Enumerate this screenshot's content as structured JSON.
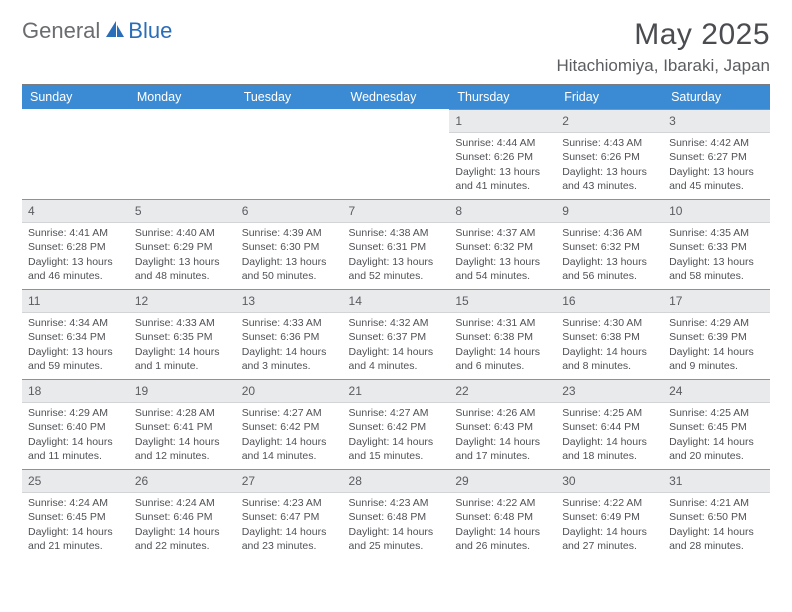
{
  "logo": {
    "text1": "General",
    "text2": "Blue"
  },
  "title": "May 2025",
  "location": "Hitachiomiya, Ibaraki, Japan",
  "colors": {
    "header_bg": "#3b8bd4",
    "header_text": "#ffffff",
    "daynum_bg": "#e9eaec",
    "text": "#4f5155",
    "logo_gray": "#6a6c70",
    "logo_blue": "#2a6db8"
  },
  "weekdays": [
    "Sunday",
    "Monday",
    "Tuesday",
    "Wednesday",
    "Thursday",
    "Friday",
    "Saturday"
  ],
  "weeks": [
    [
      {
        "day": "",
        "lines": [
          "",
          "",
          "",
          ""
        ]
      },
      {
        "day": "",
        "lines": [
          "",
          "",
          "",
          ""
        ]
      },
      {
        "day": "",
        "lines": [
          "",
          "",
          "",
          ""
        ]
      },
      {
        "day": "",
        "lines": [
          "",
          "",
          "",
          ""
        ]
      },
      {
        "day": "1",
        "lines": [
          "Sunrise: 4:44 AM",
          "Sunset: 6:26 PM",
          "Daylight: 13 hours",
          "and 41 minutes."
        ]
      },
      {
        "day": "2",
        "lines": [
          "Sunrise: 4:43 AM",
          "Sunset: 6:26 PM",
          "Daylight: 13 hours",
          "and 43 minutes."
        ]
      },
      {
        "day": "3",
        "lines": [
          "Sunrise: 4:42 AM",
          "Sunset: 6:27 PM",
          "Daylight: 13 hours",
          "and 45 minutes."
        ]
      }
    ],
    [
      {
        "day": "4",
        "lines": [
          "Sunrise: 4:41 AM",
          "Sunset: 6:28 PM",
          "Daylight: 13 hours",
          "and 46 minutes."
        ]
      },
      {
        "day": "5",
        "lines": [
          "Sunrise: 4:40 AM",
          "Sunset: 6:29 PM",
          "Daylight: 13 hours",
          "and 48 minutes."
        ]
      },
      {
        "day": "6",
        "lines": [
          "Sunrise: 4:39 AM",
          "Sunset: 6:30 PM",
          "Daylight: 13 hours",
          "and 50 minutes."
        ]
      },
      {
        "day": "7",
        "lines": [
          "Sunrise: 4:38 AM",
          "Sunset: 6:31 PM",
          "Daylight: 13 hours",
          "and 52 minutes."
        ]
      },
      {
        "day": "8",
        "lines": [
          "Sunrise: 4:37 AM",
          "Sunset: 6:32 PM",
          "Daylight: 13 hours",
          "and 54 minutes."
        ]
      },
      {
        "day": "9",
        "lines": [
          "Sunrise: 4:36 AM",
          "Sunset: 6:32 PM",
          "Daylight: 13 hours",
          "and 56 minutes."
        ]
      },
      {
        "day": "10",
        "lines": [
          "Sunrise: 4:35 AM",
          "Sunset: 6:33 PM",
          "Daylight: 13 hours",
          "and 58 minutes."
        ]
      }
    ],
    [
      {
        "day": "11",
        "lines": [
          "Sunrise: 4:34 AM",
          "Sunset: 6:34 PM",
          "Daylight: 13 hours",
          "and 59 minutes."
        ]
      },
      {
        "day": "12",
        "lines": [
          "Sunrise: 4:33 AM",
          "Sunset: 6:35 PM",
          "Daylight: 14 hours",
          "and 1 minute."
        ]
      },
      {
        "day": "13",
        "lines": [
          "Sunrise: 4:33 AM",
          "Sunset: 6:36 PM",
          "Daylight: 14 hours",
          "and 3 minutes."
        ]
      },
      {
        "day": "14",
        "lines": [
          "Sunrise: 4:32 AM",
          "Sunset: 6:37 PM",
          "Daylight: 14 hours",
          "and 4 minutes."
        ]
      },
      {
        "day": "15",
        "lines": [
          "Sunrise: 4:31 AM",
          "Sunset: 6:38 PM",
          "Daylight: 14 hours",
          "and 6 minutes."
        ]
      },
      {
        "day": "16",
        "lines": [
          "Sunrise: 4:30 AM",
          "Sunset: 6:38 PM",
          "Daylight: 14 hours",
          "and 8 minutes."
        ]
      },
      {
        "day": "17",
        "lines": [
          "Sunrise: 4:29 AM",
          "Sunset: 6:39 PM",
          "Daylight: 14 hours",
          "and 9 minutes."
        ]
      }
    ],
    [
      {
        "day": "18",
        "lines": [
          "Sunrise: 4:29 AM",
          "Sunset: 6:40 PM",
          "Daylight: 14 hours",
          "and 11 minutes."
        ]
      },
      {
        "day": "19",
        "lines": [
          "Sunrise: 4:28 AM",
          "Sunset: 6:41 PM",
          "Daylight: 14 hours",
          "and 12 minutes."
        ]
      },
      {
        "day": "20",
        "lines": [
          "Sunrise: 4:27 AM",
          "Sunset: 6:42 PM",
          "Daylight: 14 hours",
          "and 14 minutes."
        ]
      },
      {
        "day": "21",
        "lines": [
          "Sunrise: 4:27 AM",
          "Sunset: 6:42 PM",
          "Daylight: 14 hours",
          "and 15 minutes."
        ]
      },
      {
        "day": "22",
        "lines": [
          "Sunrise: 4:26 AM",
          "Sunset: 6:43 PM",
          "Daylight: 14 hours",
          "and 17 minutes."
        ]
      },
      {
        "day": "23",
        "lines": [
          "Sunrise: 4:25 AM",
          "Sunset: 6:44 PM",
          "Daylight: 14 hours",
          "and 18 minutes."
        ]
      },
      {
        "day": "24",
        "lines": [
          "Sunrise: 4:25 AM",
          "Sunset: 6:45 PM",
          "Daylight: 14 hours",
          "and 20 minutes."
        ]
      }
    ],
    [
      {
        "day": "25",
        "lines": [
          "Sunrise: 4:24 AM",
          "Sunset: 6:45 PM",
          "Daylight: 14 hours",
          "and 21 minutes."
        ]
      },
      {
        "day": "26",
        "lines": [
          "Sunrise: 4:24 AM",
          "Sunset: 6:46 PM",
          "Daylight: 14 hours",
          "and 22 minutes."
        ]
      },
      {
        "day": "27",
        "lines": [
          "Sunrise: 4:23 AM",
          "Sunset: 6:47 PM",
          "Daylight: 14 hours",
          "and 23 minutes."
        ]
      },
      {
        "day": "28",
        "lines": [
          "Sunrise: 4:23 AM",
          "Sunset: 6:48 PM",
          "Daylight: 14 hours",
          "and 25 minutes."
        ]
      },
      {
        "day": "29",
        "lines": [
          "Sunrise: 4:22 AM",
          "Sunset: 6:48 PM",
          "Daylight: 14 hours",
          "and 26 minutes."
        ]
      },
      {
        "day": "30",
        "lines": [
          "Sunrise: 4:22 AM",
          "Sunset: 6:49 PM",
          "Daylight: 14 hours",
          "and 27 minutes."
        ]
      },
      {
        "day": "31",
        "lines": [
          "Sunrise: 4:21 AM",
          "Sunset: 6:50 PM",
          "Daylight: 14 hours",
          "and 28 minutes."
        ]
      }
    ]
  ]
}
